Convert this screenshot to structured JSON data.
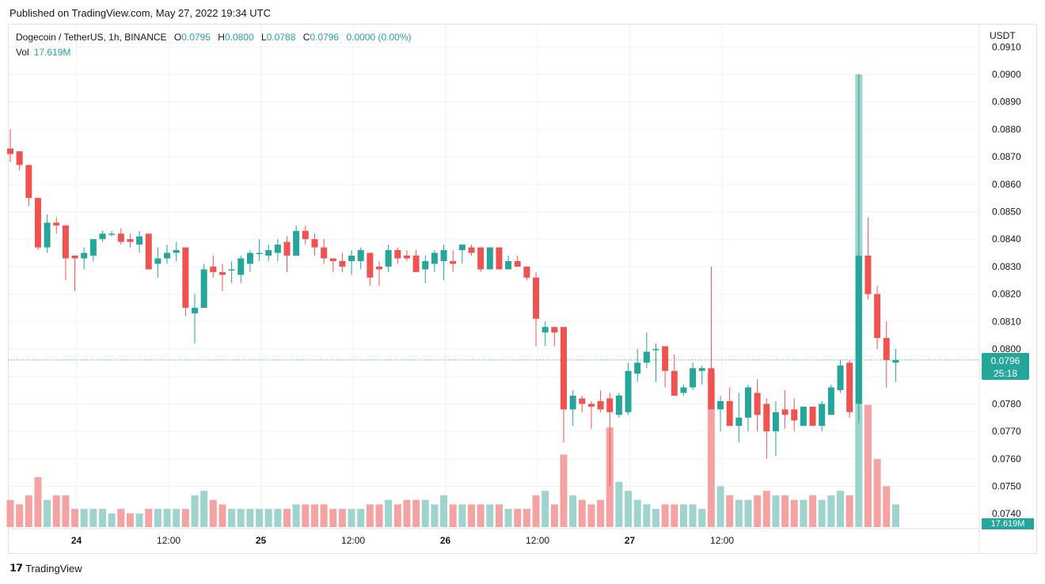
{
  "header": {
    "published": "Published on TradingView.com, May 27, 2022 19:34 UTC"
  },
  "legend": {
    "symbol": "Dogecoin / TetherUS, 1h, BINANCE",
    "o_label": "O",
    "o": "0.0795",
    "h_label": "H",
    "h": "0.0800",
    "l_label": "L",
    "l": "0.0788",
    "c_label": "C",
    "c": "0.0796",
    "change": "0.0000 (0.00%)",
    "vol_label": "Vol",
    "vol": "17.619M"
  },
  "axis": {
    "unit": "USDT",
    "last_price": "0.0796",
    "countdown": "25:18",
    "vol_tag": "17.619M"
  },
  "footer": {
    "brand": "TradingView"
  },
  "colors": {
    "up": "#26a69a",
    "down": "#ef5350",
    "up_vol": "#9fd3cd",
    "down_vol": "#f5a3a2",
    "grid": "#f0f3fa"
  },
  "chart_data": {
    "type": "candlestick",
    "ylim": [
      0.0737,
      0.0912
    ],
    "yticks": [
      "0.0740",
      "0.0750",
      "0.0760",
      "0.0770",
      "0.0780",
      "0.0790",
      "0.0800",
      "0.0810",
      "0.0820",
      "0.0830",
      "0.0840",
      "0.0850",
      "0.0860",
      "0.0870",
      "0.0880",
      "0.0890",
      "0.0900",
      "0.0910"
    ],
    "xticks": [
      {
        "label": "24",
        "index": 7
      },
      {
        "label": "12:00",
        "index": 17
      },
      {
        "label": "25",
        "index": 27
      },
      {
        "label": "12:00",
        "index": 37
      },
      {
        "label": "26",
        "index": 47
      },
      {
        "label": "12:00",
        "index": 57
      },
      {
        "label": "27",
        "index": 67
      },
      {
        "label": "12:00",
        "index": 77
      }
    ],
    "candles": [
      {
        "o": 0.0873,
        "h": 0.088,
        "l": 0.0868,
        "c": 0.0871,
        "v": 6
      },
      {
        "o": 0.0872,
        "h": 0.0872,
        "l": 0.0865,
        "c": 0.0867,
        "v": 5
      },
      {
        "o": 0.0867,
        "h": 0.0867,
        "l": 0.0852,
        "c": 0.0855,
        "v": 7
      },
      {
        "o": 0.0855,
        "h": 0.0855,
        "l": 0.0836,
        "c": 0.0837,
        "v": 11
      },
      {
        "o": 0.0837,
        "h": 0.0849,
        "l": 0.0835,
        "c": 0.0846,
        "v": 6
      },
      {
        "o": 0.0846,
        "h": 0.0848,
        "l": 0.0842,
        "c": 0.0845,
        "v": 7
      },
      {
        "o": 0.0845,
        "h": 0.0845,
        "l": 0.0825,
        "c": 0.0833,
        "v": 7
      },
      {
        "o": 0.0834,
        "h": 0.0834,
        "l": 0.0821,
        "c": 0.0833,
        "v": 4
      },
      {
        "o": 0.0833,
        "h": 0.0837,
        "l": 0.0829,
        "c": 0.0835,
        "v": 4
      },
      {
        "o": 0.0834,
        "h": 0.084,
        "l": 0.0832,
        "c": 0.084,
        "v": 4
      },
      {
        "o": 0.084,
        "h": 0.0843,
        "l": 0.0839,
        "c": 0.0842,
        "v": 4
      },
      {
        "o": 0.0842,
        "h": 0.0843,
        "l": 0.0841,
        "c": 0.0842,
        "v": 3
      },
      {
        "o": 0.0842,
        "h": 0.0844,
        "l": 0.0838,
        "c": 0.0839,
        "v": 4
      },
      {
        "o": 0.084,
        "h": 0.0842,
        "l": 0.0837,
        "c": 0.0839,
        "v": 3
      },
      {
        "o": 0.0838,
        "h": 0.0843,
        "l": 0.0835,
        "c": 0.0841,
        "v": 3
      },
      {
        "o": 0.0842,
        "h": 0.0842,
        "l": 0.0829,
        "c": 0.0829,
        "v": 4
      },
      {
        "o": 0.0831,
        "h": 0.0837,
        "l": 0.0826,
        "c": 0.0833,
        "v": 4
      },
      {
        "o": 0.0833,
        "h": 0.0838,
        "l": 0.0831,
        "c": 0.0835,
        "v": 4
      },
      {
        "o": 0.0835,
        "h": 0.0839,
        "l": 0.0832,
        "c": 0.0836,
        "v": 4
      },
      {
        "o": 0.0837,
        "h": 0.0837,
        "l": 0.0812,
        "c": 0.0815,
        "v": 4
      },
      {
        "o": 0.0813,
        "h": 0.082,
        "l": 0.0802,
        "c": 0.0815,
        "v": 7
      },
      {
        "o": 0.0815,
        "h": 0.0831,
        "l": 0.0815,
        "c": 0.0829,
        "v": 8
      },
      {
        "o": 0.083,
        "h": 0.0834,
        "l": 0.0826,
        "c": 0.0828,
        "v": 6
      },
      {
        "o": 0.0828,
        "h": 0.0831,
        "l": 0.0821,
        "c": 0.0827,
        "v": 5
      },
      {
        "o": 0.0829,
        "h": 0.0832,
        "l": 0.0824,
        "c": 0.0829,
        "v": 4
      },
      {
        "o": 0.0827,
        "h": 0.0834,
        "l": 0.0824,
        "c": 0.0833,
        "v": 4
      },
      {
        "o": 0.0831,
        "h": 0.0836,
        "l": 0.0828,
        "c": 0.0835,
        "v": 4
      },
      {
        "o": 0.0835,
        "h": 0.084,
        "l": 0.0832,
        "c": 0.0835,
        "v": 4
      },
      {
        "o": 0.0834,
        "h": 0.0838,
        "l": 0.0832,
        "c": 0.0836,
        "v": 4
      },
      {
        "o": 0.0835,
        "h": 0.084,
        "l": 0.0832,
        "c": 0.0838,
        "v": 4
      },
      {
        "o": 0.0839,
        "h": 0.0841,
        "l": 0.0828,
        "c": 0.0834,
        "v": 4
      },
      {
        "o": 0.0834,
        "h": 0.0845,
        "l": 0.0834,
        "c": 0.0843,
        "v": 5
      },
      {
        "o": 0.0843,
        "h": 0.0845,
        "l": 0.0838,
        "c": 0.084,
        "v": 5
      },
      {
        "o": 0.084,
        "h": 0.0842,
        "l": 0.0834,
        "c": 0.0837,
        "v": 5
      },
      {
        "o": 0.0837,
        "h": 0.084,
        "l": 0.0831,
        "c": 0.0833,
        "v": 5
      },
      {
        "o": 0.0833,
        "h": 0.0833,
        "l": 0.0828,
        "c": 0.0832,
        "v": 4
      },
      {
        "o": 0.0832,
        "h": 0.0835,
        "l": 0.0828,
        "c": 0.083,
        "v": 4
      },
      {
        "o": 0.0832,
        "h": 0.0836,
        "l": 0.0827,
        "c": 0.0834,
        "v": 4
      },
      {
        "o": 0.0832,
        "h": 0.0837,
        "l": 0.0829,
        "c": 0.0836,
        "v": 4
      },
      {
        "o": 0.0835,
        "h": 0.0835,
        "l": 0.0823,
        "c": 0.0826,
        "v": 5
      },
      {
        "o": 0.083,
        "h": 0.0832,
        "l": 0.0823,
        "c": 0.0829,
        "v": 5
      },
      {
        "o": 0.083,
        "h": 0.0838,
        "l": 0.0828,
        "c": 0.0836,
        "v": 6
      },
      {
        "o": 0.0836,
        "h": 0.0837,
        "l": 0.0831,
        "c": 0.0833,
        "v": 5
      },
      {
        "o": 0.0834,
        "h": 0.0836,
        "l": 0.0832,
        "c": 0.0833,
        "v": 6
      },
      {
        "o": 0.0834,
        "h": 0.0836,
        "l": 0.0829,
        "c": 0.0828,
        "v": 6
      },
      {
        "o": 0.0829,
        "h": 0.0834,
        "l": 0.0824,
        "c": 0.0832,
        "v": 6
      },
      {
        "o": 0.0831,
        "h": 0.0836,
        "l": 0.0828,
        "c": 0.0835,
        "v": 5
      },
      {
        "o": 0.0832,
        "h": 0.0838,
        "l": 0.0825,
        "c": 0.0836,
        "v": 7
      },
      {
        "o": 0.0832,
        "h": 0.0836,
        "l": 0.0828,
        "c": 0.0831,
        "v": 5
      },
      {
        "o": 0.0836,
        "h": 0.0838,
        "l": 0.0831,
        "c": 0.0838,
        "v": 5
      },
      {
        "o": 0.0837,
        "h": 0.0838,
        "l": 0.0834,
        "c": 0.0835,
        "v": 5
      },
      {
        "o": 0.0837,
        "h": 0.0837,
        "l": 0.0828,
        "c": 0.0829,
        "v": 5
      },
      {
        "o": 0.0829,
        "h": 0.0837,
        "l": 0.0829,
        "c": 0.0837,
        "v": 5
      },
      {
        "o": 0.0837,
        "h": 0.0837,
        "l": 0.0829,
        "c": 0.0829,
        "v": 5
      },
      {
        "o": 0.0829,
        "h": 0.0834,
        "l": 0.0829,
        "c": 0.0832,
        "v": 4
      },
      {
        "o": 0.0832,
        "h": 0.0834,
        "l": 0.083,
        "c": 0.083,
        "v": 4
      },
      {
        "o": 0.083,
        "h": 0.083,
        "l": 0.0825,
        "c": 0.0826,
        "v": 4
      },
      {
        "o": 0.0826,
        "h": 0.0828,
        "l": 0.0801,
        "c": 0.0811,
        "v": 7
      },
      {
        "o": 0.0806,
        "h": 0.081,
        "l": 0.0801,
        "c": 0.0808,
        "v": 8
      },
      {
        "o": 0.0808,
        "h": 0.0808,
        "l": 0.0801,
        "c": 0.0806,
        "v": 5
      },
      {
        "o": 0.0808,
        "h": 0.0808,
        "l": 0.0766,
        "c": 0.0778,
        "v": 16
      },
      {
        "o": 0.0778,
        "h": 0.0785,
        "l": 0.0772,
        "c": 0.0783,
        "v": 7
      },
      {
        "o": 0.0782,
        "h": 0.0783,
        "l": 0.0777,
        "c": 0.078,
        "v": 6
      },
      {
        "o": 0.078,
        "h": 0.0781,
        "l": 0.0771,
        "c": 0.0779,
        "v": 5
      },
      {
        "o": 0.0781,
        "h": 0.0785,
        "l": 0.0777,
        "c": 0.0778,
        "v": 6
      },
      {
        "o": 0.0782,
        "h": 0.0784,
        "l": 0.075,
        "c": 0.0777,
        "v": 22
      },
      {
        "o": 0.0776,
        "h": 0.0784,
        "l": 0.0775,
        "c": 0.0783,
        "v": 10
      },
      {
        "o": 0.0777,
        "h": 0.0795,
        "l": 0.0776,
        "c": 0.0792,
        "v": 8
      },
      {
        "o": 0.0791,
        "h": 0.08,
        "l": 0.0788,
        "c": 0.0795,
        "v": 6
      },
      {
        "o": 0.0795,
        "h": 0.0806,
        "l": 0.0793,
        "c": 0.0799,
        "v": 5
      },
      {
        "o": 0.08,
        "h": 0.0802,
        "l": 0.0788,
        "c": 0.08,
        "v": 4
      },
      {
        "o": 0.0801,
        "h": 0.0801,
        "l": 0.0786,
        "c": 0.0792,
        "v": 5
      },
      {
        "o": 0.0792,
        "h": 0.0798,
        "l": 0.0783,
        "c": 0.0783,
        "v": 5
      },
      {
        "o": 0.0784,
        "h": 0.0787,
        "l": 0.0783,
        "c": 0.0786,
        "v": 5
      },
      {
        "o": 0.0786,
        "h": 0.0795,
        "l": 0.0785,
        "c": 0.0793,
        "v": 5
      },
      {
        "o": 0.0792,
        "h": 0.0794,
        "l": 0.0787,
        "c": 0.0793,
        "v": 4
      },
      {
        "o": 0.0793,
        "h": 0.083,
        "l": 0.0778,
        "c": 0.0778,
        "v": 34
      },
      {
        "o": 0.0778,
        "h": 0.0783,
        "l": 0.077,
        "c": 0.0781,
        "v": 9
      },
      {
        "o": 0.0781,
        "h": 0.0786,
        "l": 0.0772,
        "c": 0.0772,
        "v": 7
      },
      {
        "o": 0.0772,
        "h": 0.0784,
        "l": 0.0766,
        "c": 0.0775,
        "v": 6
      },
      {
        "o": 0.0775,
        "h": 0.0787,
        "l": 0.077,
        "c": 0.0786,
        "v": 6
      },
      {
        "o": 0.0784,
        "h": 0.0789,
        "l": 0.077,
        "c": 0.0776,
        "v": 7
      },
      {
        "o": 0.078,
        "h": 0.0782,
        "l": 0.076,
        "c": 0.077,
        "v": 8
      },
      {
        "o": 0.077,
        "h": 0.0781,
        "l": 0.0761,
        "c": 0.0777,
        "v": 7
      },
      {
        "o": 0.0778,
        "h": 0.0785,
        "l": 0.0771,
        "c": 0.0776,
        "v": 7
      },
      {
        "o": 0.0778,
        "h": 0.0782,
        "l": 0.077,
        "c": 0.0774,
        "v": 6
      },
      {
        "o": 0.0772,
        "h": 0.0779,
        "l": 0.0772,
        "c": 0.0779,
        "v": 6
      },
      {
        "o": 0.0779,
        "h": 0.0779,
        "l": 0.0772,
        "c": 0.0772,
        "v": 7
      },
      {
        "o": 0.0772,
        "h": 0.0781,
        "l": 0.077,
        "c": 0.078,
        "v": 6
      },
      {
        "o": 0.0776,
        "h": 0.0787,
        "l": 0.0776,
        "c": 0.0786,
        "v": 7
      },
      {
        "o": 0.0785,
        "h": 0.0796,
        "l": 0.0784,
        "c": 0.0794,
        "v": 8
      },
      {
        "o": 0.0795,
        "h": 0.0796,
        "l": 0.0775,
        "c": 0.0777,
        "v": 7
      },
      {
        "o": 0.078,
        "h": 0.09,
        "l": 0.0773,
        "c": 0.0834,
        "v": 100
      },
      {
        "o": 0.0834,
        "h": 0.0848,
        "l": 0.0818,
        "c": 0.082,
        "v": 27
      },
      {
        "o": 0.082,
        "h": 0.0823,
        "l": 0.08,
        "c": 0.0804,
        "v": 15
      },
      {
        "o": 0.0804,
        "h": 0.081,
        "l": 0.0786,
        "c": 0.0796,
        "v": 9
      },
      {
        "o": 0.0795,
        "h": 0.08,
        "l": 0.0788,
        "c": 0.0796,
        "v": 5
      }
    ]
  }
}
